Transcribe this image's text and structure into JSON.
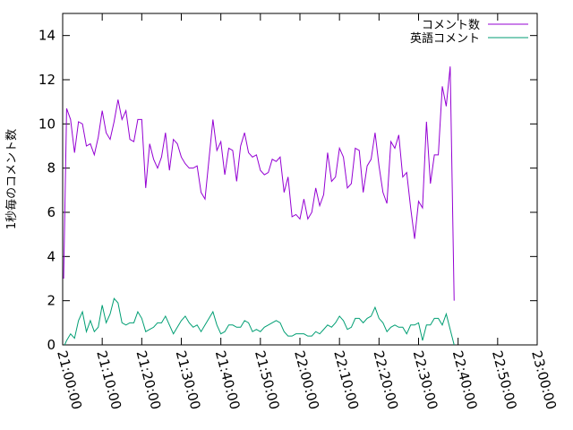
{
  "chart_data": {
    "type": "line",
    "title": "",
    "xlabel": "",
    "ylabel": "1秒毎のコメント数",
    "xlim": [
      "21:00:00",
      "23:00:00"
    ],
    "ylim": [
      0,
      15
    ],
    "grid": false,
    "legend_position": "top-right",
    "x_ticks": [
      "21:00:00",
      "21:10:00",
      "21:20:00",
      "21:30:00",
      "21:40:00",
      "21:50:00",
      "22:00:00",
      "22:10:00",
      "22:20:00",
      "22:30:00",
      "22:40:00",
      "22:50:00",
      "23:00:00"
    ],
    "y_ticks": [
      "0",
      "2",
      "4",
      "6",
      "8",
      "10",
      "12",
      "14"
    ],
    "series": [
      {
        "name": "コメント数",
        "color": "#9400d3",
        "points": [
          [
            "21:00:15",
            3.0
          ],
          [
            "21:01:00",
            10.7
          ],
          [
            "21:02:00",
            10.2
          ],
          [
            "21:03:00",
            8.7
          ],
          [
            "21:04:00",
            10.1
          ],
          [
            "21:05:00",
            10.0
          ],
          [
            "21:06:00",
            9.0
          ],
          [
            "21:07:00",
            9.1
          ],
          [
            "21:08:00",
            8.6
          ],
          [
            "21:09:00",
            9.4
          ],
          [
            "21:10:00",
            10.6
          ],
          [
            "21:11:00",
            9.6
          ],
          [
            "21:12:00",
            9.3
          ],
          [
            "21:13:00",
            10.1
          ],
          [
            "21:14:00",
            11.1
          ],
          [
            "21:15:00",
            10.2
          ],
          [
            "21:16:00",
            10.6
          ],
          [
            "21:17:00",
            9.3
          ],
          [
            "21:18:00",
            9.2
          ],
          [
            "21:19:00",
            10.2
          ],
          [
            "21:20:00",
            10.2
          ],
          [
            "21:21:00",
            7.1
          ],
          [
            "21:22:00",
            9.1
          ],
          [
            "21:23:00",
            8.4
          ],
          [
            "21:24:00",
            8.0
          ],
          [
            "21:25:00",
            8.5
          ],
          [
            "21:26:00",
            9.6
          ],
          [
            "21:27:00",
            7.9
          ],
          [
            "21:28:00",
            9.3
          ],
          [
            "21:29:00",
            9.1
          ],
          [
            "21:30:00",
            8.5
          ],
          [
            "21:31:00",
            8.2
          ],
          [
            "21:32:00",
            8.0
          ],
          [
            "21:33:00",
            8.0
          ],
          [
            "21:34:00",
            8.1
          ],
          [
            "21:35:00",
            6.9
          ],
          [
            "21:36:00",
            6.6
          ],
          [
            "21:37:00",
            8.4
          ],
          [
            "21:38:00",
            10.2
          ],
          [
            "21:39:00",
            8.8
          ],
          [
            "21:40:00",
            9.2
          ],
          [
            "21:41:00",
            7.7
          ],
          [
            "21:42:00",
            8.9
          ],
          [
            "21:43:00",
            8.8
          ],
          [
            "21:44:00",
            7.4
          ],
          [
            "21:45:00",
            9.0
          ],
          [
            "21:46:00",
            9.6
          ],
          [
            "21:47:00",
            8.7
          ],
          [
            "21:48:00",
            8.5
          ],
          [
            "21:49:00",
            8.6
          ],
          [
            "21:50:00",
            7.9
          ],
          [
            "21:51:00",
            7.7
          ],
          [
            "21:52:00",
            7.8
          ],
          [
            "21:53:00",
            8.4
          ],
          [
            "21:54:00",
            8.3
          ],
          [
            "21:55:00",
            8.5
          ],
          [
            "21:56:00",
            6.9
          ],
          [
            "21:57:00",
            7.6
          ],
          [
            "21:58:00",
            5.8
          ],
          [
            "21:59:00",
            5.9
          ],
          [
            "22:00:00",
            5.7
          ],
          [
            "22:01:00",
            6.6
          ],
          [
            "22:02:00",
            5.7
          ],
          [
            "22:03:00",
            6.0
          ],
          [
            "22:04:00",
            7.1
          ],
          [
            "22:05:00",
            6.3
          ],
          [
            "22:06:00",
            6.8
          ],
          [
            "22:07:00",
            8.7
          ],
          [
            "22:08:00",
            7.4
          ],
          [
            "22:09:00",
            7.6
          ],
          [
            "22:10:00",
            8.9
          ],
          [
            "22:11:00",
            8.5
          ],
          [
            "22:12:00",
            7.1
          ],
          [
            "22:13:00",
            7.3
          ],
          [
            "22:14:00",
            8.9
          ],
          [
            "22:15:00",
            8.8
          ],
          [
            "22:16:00",
            6.9
          ],
          [
            "22:17:00",
            8.1
          ],
          [
            "22:18:00",
            8.4
          ],
          [
            "22:19:00",
            9.6
          ],
          [
            "22:20:00",
            8.1
          ],
          [
            "22:21:00",
            6.9
          ],
          [
            "22:22:00",
            6.4
          ],
          [
            "22:23:00",
            9.2
          ],
          [
            "22:24:00",
            8.9
          ],
          [
            "22:25:00",
            9.5
          ],
          [
            "22:26:00",
            7.6
          ],
          [
            "22:27:00",
            7.8
          ],
          [
            "22:28:00",
            6.2
          ],
          [
            "22:29:00",
            4.8
          ],
          [
            "22:30:00",
            6.5
          ],
          [
            "22:31:00",
            6.2
          ],
          [
            "22:32:00",
            10.1
          ],
          [
            "22:33:00",
            7.3
          ],
          [
            "22:34:00",
            8.6
          ],
          [
            "22:35:00",
            8.6
          ],
          [
            "22:36:00",
            11.7
          ],
          [
            "22:37:00",
            10.8
          ],
          [
            "22:38:00",
            12.6
          ],
          [
            "22:39:00",
            2.0
          ]
        ]
      },
      {
        "name": "英語コメント",
        "color": "#009e73",
        "points": [
          [
            "21:00:30",
            0.0
          ],
          [
            "21:01:00",
            0.2
          ],
          [
            "21:02:00",
            0.5
          ],
          [
            "21:03:00",
            0.3
          ],
          [
            "21:04:00",
            1.1
          ],
          [
            "21:05:00",
            1.5
          ],
          [
            "21:06:00",
            0.6
          ],
          [
            "21:07:00",
            1.1
          ],
          [
            "21:08:00",
            0.6
          ],
          [
            "21:09:00",
            0.8
          ],
          [
            "21:10:00",
            1.8
          ],
          [
            "21:11:00",
            1.0
          ],
          [
            "21:12:00",
            1.4
          ],
          [
            "21:13:00",
            2.1
          ],
          [
            "21:14:00",
            1.9
          ],
          [
            "21:15:00",
            1.0
          ],
          [
            "21:16:00",
            0.9
          ],
          [
            "21:17:00",
            1.0
          ],
          [
            "21:18:00",
            1.0
          ],
          [
            "21:19:00",
            1.5
          ],
          [
            "21:20:00",
            1.2
          ],
          [
            "21:21:00",
            0.6
          ],
          [
            "21:22:00",
            0.7
          ],
          [
            "21:23:00",
            0.8
          ],
          [
            "21:24:00",
            1.0
          ],
          [
            "21:25:00",
            1.0
          ],
          [
            "21:26:00",
            1.3
          ],
          [
            "21:27:00",
            0.9
          ],
          [
            "21:28:00",
            0.5
          ],
          [
            "21:29:00",
            0.8
          ],
          [
            "21:30:00",
            1.1
          ],
          [
            "21:31:00",
            1.3
          ],
          [
            "21:32:00",
            1.0
          ],
          [
            "21:33:00",
            0.8
          ],
          [
            "21:34:00",
            0.9
          ],
          [
            "21:35:00",
            0.6
          ],
          [
            "21:36:00",
            0.9
          ],
          [
            "21:37:00",
            1.2
          ],
          [
            "21:38:00",
            1.5
          ],
          [
            "21:39:00",
            0.9
          ],
          [
            "21:40:00",
            0.5
          ],
          [
            "21:41:00",
            0.6
          ],
          [
            "21:42:00",
            0.9
          ],
          [
            "21:43:00",
            0.9
          ],
          [
            "21:44:00",
            0.8
          ],
          [
            "21:45:00",
            0.8
          ],
          [
            "21:46:00",
            1.1
          ],
          [
            "21:47:00",
            1.0
          ],
          [
            "21:48:00",
            0.6
          ],
          [
            "21:49:00",
            0.7
          ],
          [
            "21:50:00",
            0.6
          ],
          [
            "21:51:00",
            0.8
          ],
          [
            "21:52:00",
            0.9
          ],
          [
            "21:53:00",
            1.0
          ],
          [
            "21:54:00",
            1.1
          ],
          [
            "21:55:00",
            1.0
          ],
          [
            "21:56:00",
            0.6
          ],
          [
            "21:57:00",
            0.4
          ],
          [
            "21:58:00",
            0.4
          ],
          [
            "21:59:00",
            0.5
          ],
          [
            "22:00:00",
            0.5
          ],
          [
            "22:01:00",
            0.5
          ],
          [
            "22:02:00",
            0.4
          ],
          [
            "22:03:00",
            0.4
          ],
          [
            "22:04:00",
            0.6
          ],
          [
            "22:05:00",
            0.5
          ],
          [
            "22:06:00",
            0.7
          ],
          [
            "22:07:00",
            0.9
          ],
          [
            "22:08:00",
            0.8
          ],
          [
            "22:09:00",
            1.0
          ],
          [
            "22:10:00",
            1.3
          ],
          [
            "22:11:00",
            1.1
          ],
          [
            "22:12:00",
            0.7
          ],
          [
            "22:13:00",
            0.8
          ],
          [
            "22:14:00",
            1.2
          ],
          [
            "22:15:00",
            1.2
          ],
          [
            "22:16:00",
            1.0
          ],
          [
            "22:17:00",
            1.2
          ],
          [
            "22:18:00",
            1.3
          ],
          [
            "22:19:00",
            1.7
          ],
          [
            "22:20:00",
            1.2
          ],
          [
            "22:21:00",
            1.0
          ],
          [
            "22:22:00",
            0.6
          ],
          [
            "22:23:00",
            0.8
          ],
          [
            "22:24:00",
            0.9
          ],
          [
            "22:25:00",
            0.8
          ],
          [
            "22:26:00",
            0.8
          ],
          [
            "22:27:00",
            0.5
          ],
          [
            "22:28:00",
            0.9
          ],
          [
            "22:29:00",
            0.9
          ],
          [
            "22:30:00",
            1.0
          ],
          [
            "22:31:00",
            0.2
          ],
          [
            "22:32:00",
            0.9
          ],
          [
            "22:33:00",
            0.9
          ],
          [
            "22:34:00",
            1.2
          ],
          [
            "22:35:00",
            1.2
          ],
          [
            "22:36:00",
            0.9
          ],
          [
            "22:37:00",
            1.4
          ],
          [
            "22:38:00",
            0.7
          ],
          [
            "22:39:00",
            0.0
          ]
        ]
      }
    ]
  }
}
